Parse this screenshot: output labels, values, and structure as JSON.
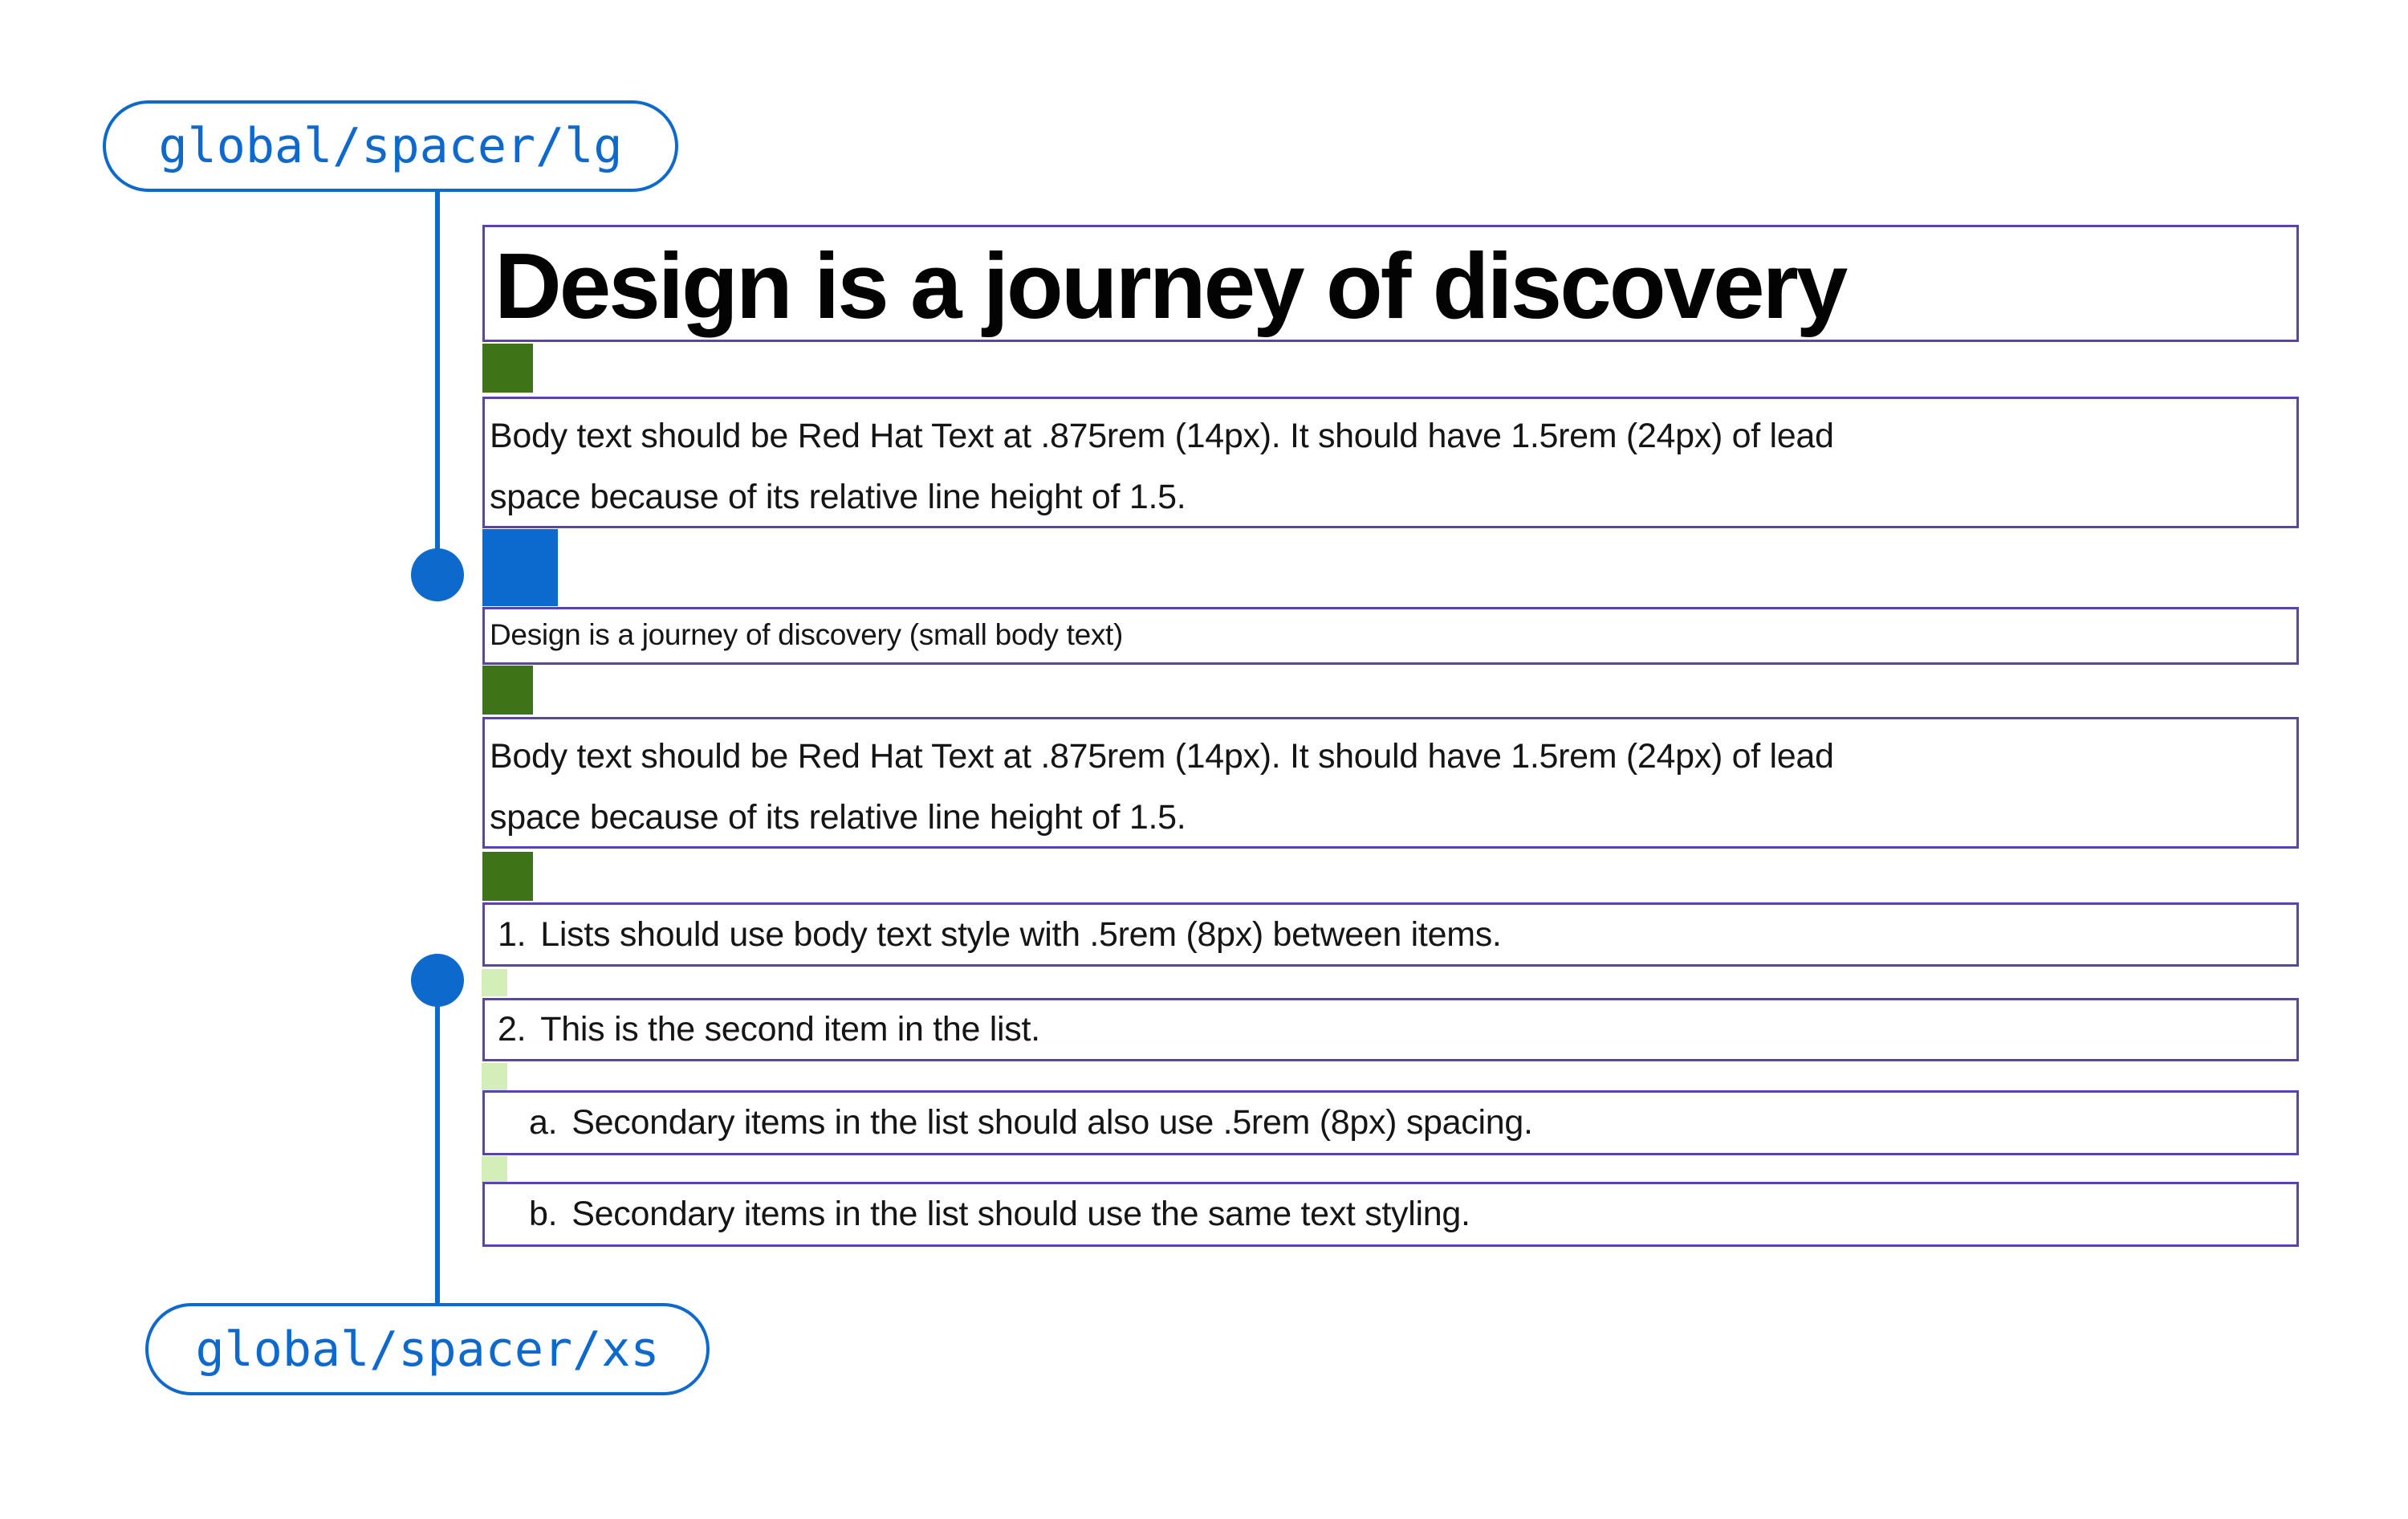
{
  "annotations": {
    "top_token": "global/spacer/lg",
    "bottom_token": "global/spacer/xs"
  },
  "content": {
    "heading": "Design is a journey of discovery",
    "body_line1": "Body text should be Red Hat Text at .875rem (14px). It should have 1.5rem (24px) of lead",
    "body_line2": "space because of its relative line height of 1.5.",
    "small_body": "Design is a journey of discovery (small body text)",
    "list_items": [
      {
        "marker": "1.",
        "text": "Lists should use body text style with .5rem (8px) between items."
      },
      {
        "marker": "2.",
        "text": "This is the second item in the list."
      },
      {
        "marker": "a.",
        "text": "Secondary items in the list should also use .5rem (8px) spacing."
      },
      {
        "marker": "b.",
        "text": "Secondary items in the list should use the same text styling."
      }
    ]
  },
  "colors": {
    "annotation_blue": "#0d69cc",
    "box_border_purple": "#5b43ae",
    "spacer_green": "#3e7317",
    "spacer_blue": "#0c6ace",
    "spacer_pale_green": "#d3eeb7",
    "text_black": "#151515"
  }
}
